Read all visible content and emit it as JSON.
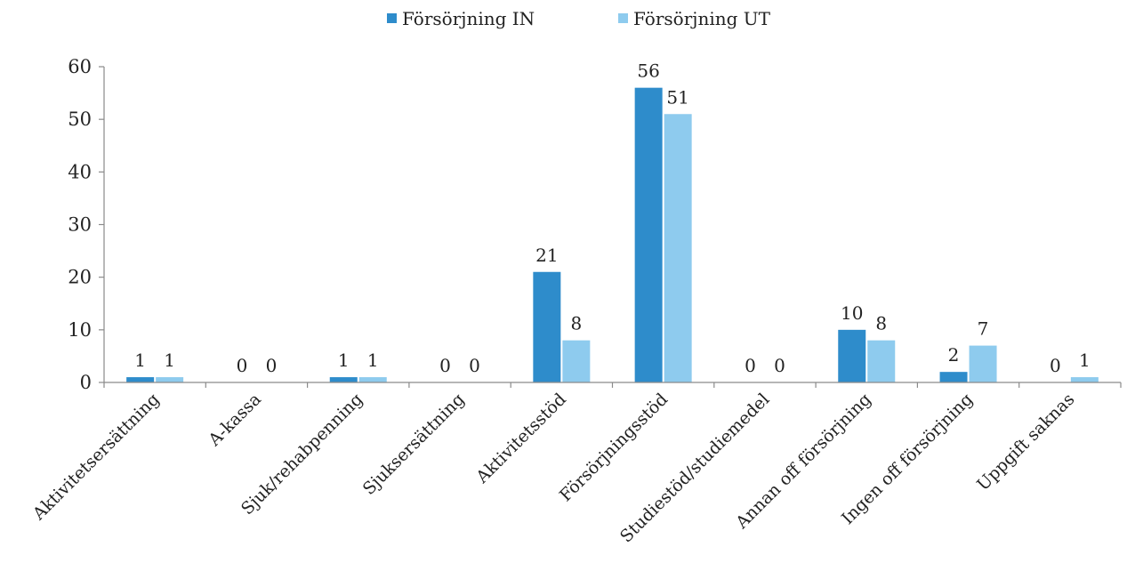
{
  "chart_data": {
    "type": "bar",
    "title": "",
    "xlabel": "",
    "ylabel": "",
    "ylim": [
      0,
      60
    ],
    "yticks": [
      0,
      10,
      20,
      30,
      40,
      50,
      60
    ],
    "grid": false,
    "legend_position": "top-center",
    "categories": [
      "Aktivitetsersättning",
      "A-kassa",
      "Sjuk/rehabpenning",
      "Sjuksersättning",
      "Aktivitetsstöd",
      "Försörjningsstöd",
      "Studiestöd/studiemedel",
      "Annan off försörjning",
      "Ingen off försörjning",
      "Uppgift saknas"
    ],
    "series": [
      {
        "name": "Försörjning IN",
        "color": "#2e8ccb",
        "values": [
          1,
          0,
          1,
          0,
          21,
          56,
          0,
          10,
          2,
          0
        ]
      },
      {
        "name": "Försörjning UT",
        "color": "#8ecbee",
        "values": [
          1,
          0,
          1,
          0,
          8,
          51,
          0,
          8,
          7,
          1
        ]
      }
    ]
  }
}
